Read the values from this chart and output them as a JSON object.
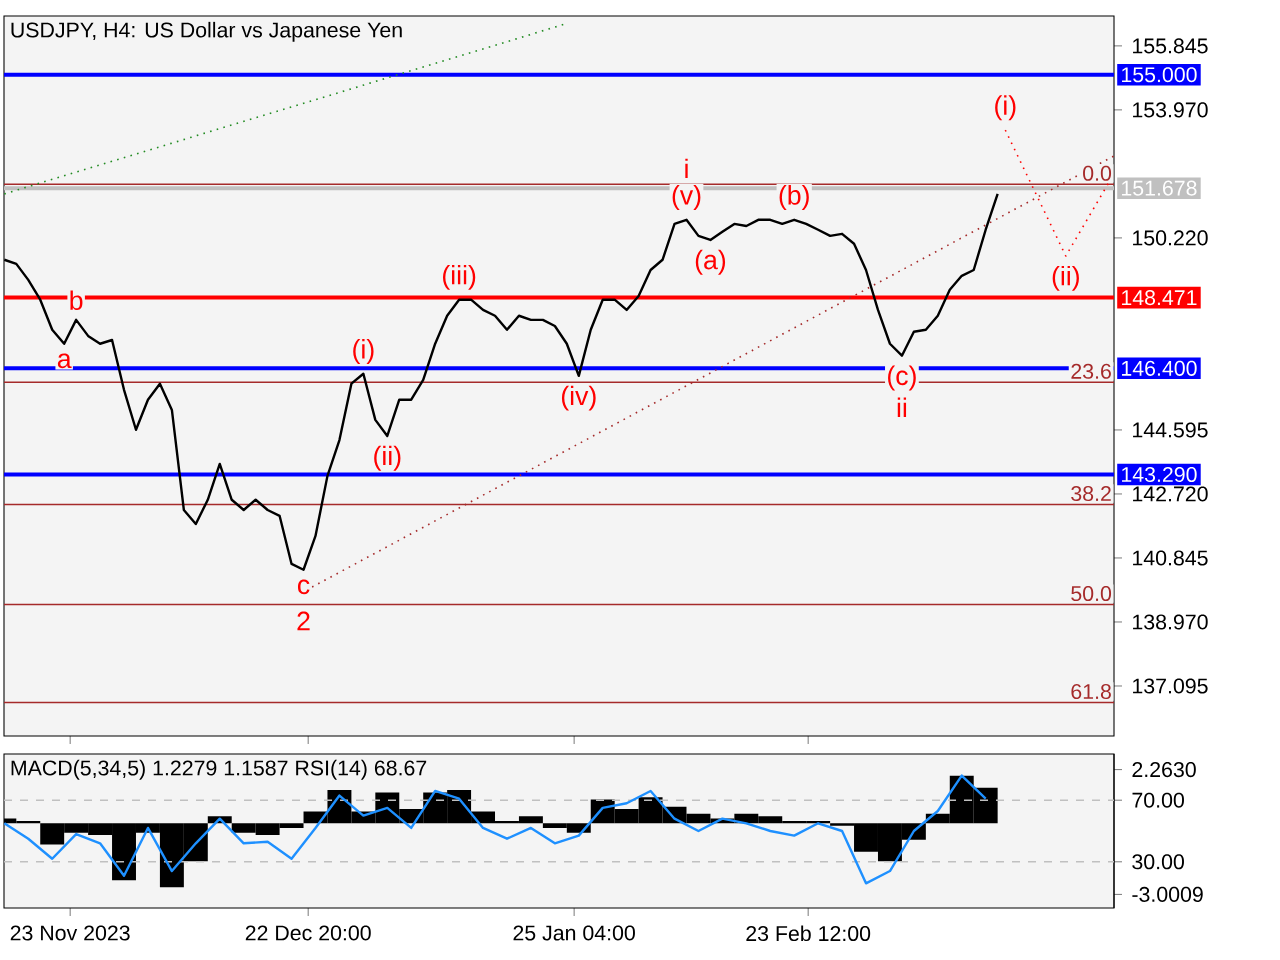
{
  "chart_data": [
    {
      "type": "line",
      "title": "USDJPY, H4:  US Dollar vs Japanese Yen",
      "series": [
        {
          "color": "#000000",
          "x": [
            "2023-11-14T18:00",
            "2023-11-16T06:00",
            "2023-11-17T18:00",
            "2023-11-19T06:00",
            "2023-11-20T18:00",
            "2023-11-22T06:00",
            "2023-11-23T18:00",
            "2023-11-25T06:00",
            "2023-11-26T18:00",
            "2023-11-28T06:00",
            "2023-11-29T18:00",
            "2023-12-01T06:00",
            "2023-12-02T18:00",
            "2023-12-04T06:00",
            "2023-12-05T18:00",
            "2023-12-07T06:00",
            "2023-12-08T18:00",
            "2023-12-10T06:00",
            "2023-12-11T18:00",
            "2023-12-13T06:00",
            "2023-12-14T18:00",
            "2023-12-16T06:00",
            "2023-12-17T18:00",
            "2023-12-19T06:00",
            "2023-12-20T18:00",
            "2023-12-22T06:00",
            "2023-12-23T18:00",
            "2023-12-25T06:00",
            "2023-12-26T18:00",
            "2023-12-28T06:00",
            "2023-12-29T18:00",
            "2023-12-31T06:00",
            "2024-01-01T18:00",
            "2024-01-03T06:00",
            "2024-01-04T18:00",
            "2024-01-06T06:00",
            "2024-01-07T18:00",
            "2024-01-09T06:00",
            "2024-01-10T18:00",
            "2024-01-12T06:00",
            "2024-01-13T18:00",
            "2024-01-15T06:00",
            "2024-01-16T18:00",
            "2024-01-18T06:00",
            "2024-01-19T18:00",
            "2024-01-21T06:00",
            "2024-01-22T18:00",
            "2024-01-24T06:00",
            "2024-01-25T18:00",
            "2024-01-27T06:00",
            "2024-01-28T18:00",
            "2024-01-30T06:00",
            "2024-01-31T18:00",
            "2024-02-02T06:00",
            "2024-02-03T18:00",
            "2024-02-05T06:00",
            "2024-02-06T18:00",
            "2024-02-08T06:00",
            "2024-02-09T18:00",
            "2024-02-11T06:00",
            "2024-02-12T18:00",
            "2024-02-14T06:00",
            "2024-02-15T18:00",
            "2024-02-17T06:00",
            "2024-02-18T18:00",
            "2024-02-20T06:00",
            "2024-02-21T18:00",
            "2024-02-23T06:00",
            "2024-02-24T18:00",
            "2024-02-26T06:00",
            "2024-02-27T18:00",
            "2024-02-29T06:00",
            "2024-03-01T18:00",
            "2024-03-03T06:00",
            "2024-03-04T18:00",
            "2024-03-06T06:00",
            "2024-03-07T18:00",
            "2024-03-09T06:00",
            "2024-03-10T18:00",
            "2024-03-12T06:00",
            "2024-03-13T18:00",
            "2024-03-15T06:00",
            "2024-03-16T18:00",
            "2024-03-18T06:00"
          ],
          "values": [
            149.58,
            149.46,
            148.99,
            148.41,
            147.53,
            147.12,
            147.82,
            147.35,
            147.12,
            147.23,
            145.77,
            144.6,
            145.48,
            145.95,
            145.18,
            142.25,
            141.84,
            142.55,
            143.6,
            142.55,
            142.25,
            142.55,
            142.25,
            142.08,
            140.67,
            140.5,
            141.49,
            143.25,
            144.3,
            145.95,
            146.24,
            144.89,
            144.42,
            145.48,
            145.48,
            146.06,
            147.12,
            147.94,
            148.41,
            148.41,
            148.11,
            147.94,
            147.53,
            147.94,
            147.82,
            147.82,
            147.64,
            147.12,
            146.18,
            147.53,
            148.41,
            148.41,
            148.11,
            148.52,
            149.28,
            149.58,
            150.63,
            150.75,
            150.28,
            150.16,
            150.4,
            150.63,
            150.57,
            150.75,
            150.75,
            150.63,
            150.75,
            150.63,
            150.46,
            150.28,
            150.34,
            150.05,
            149.28,
            148.11,
            147.12,
            146.77,
            147.47,
            147.53,
            147.94,
            148.7,
            149.11,
            149.28,
            150.46,
            151.51
          ]
        },
        {
          "color": "#228b22",
          "line_style": "dotted",
          "x": [
            "2023-11-14T18:00",
            "2024-01-24T06:00"
          ],
          "values": [
            151.51,
            156.5
          ]
        },
        {
          "color": "#a52a2a",
          "line_style": "dotted",
          "x": [
            "2023-12-21T19:00",
            "2024-04-01T20:00"
          ],
          "values": [
            139.8,
            152.62
          ]
        },
        {
          "color": "#ff0000",
          "line_style": "dotted",
          "x": [
            "2024-03-19T05:00",
            "2024-03-26T19:00",
            "2024-04-01T20:00"
          ],
          "values": [
            153.38,
            149.69,
            152.1
          ]
        }
      ],
      "xlim": [
        "2023-11-14T17:00",
        "2024-04-01T20:00"
      ],
      "xticks": [
        {
          "value": "2023-11-23T00:00",
          "label": null
        },
        {
          "value": "2023-12-22T20:00",
          "label": null
        },
        {
          "value": "2024-01-25T04:00",
          "label": null
        },
        {
          "value": "2024-02-23T12:00",
          "label": null
        }
      ],
      "ylim": [
        135.63,
        156.72
      ],
      "yticks": [
        155.845,
        {
          "value": 153.97,
          "label": "153.970"
        },
        {
          "value": 150.22,
          "label": "150.220"
        },
        144.595,
        {
          "value": 142.72,
          "label": "142.720"
        },
        140.845,
        {
          "value": 138.97,
          "label": "138.970"
        },
        137.095
      ],
      "tick_labels": "y",
      "ref_lines": [
        {
          "axis": "y",
          "value": 155.0,
          "label": "155.000",
          "color": "#0000ff"
        },
        {
          "axis": "y",
          "value": 151.678,
          "label": "151.678",
          "color": "#c0c0c0"
        },
        {
          "axis": "y",
          "value": 148.471,
          "label": "148.471",
          "color": "#ff0000"
        },
        {
          "axis": "y",
          "value": 146.4,
          "label": "146.400",
          "color": "#0000ff"
        },
        {
          "axis": "y",
          "value": 143.29,
          "label": "143.290",
          "color": "#0000ff"
        },
        {
          "axis": "y",
          "value": 151.79,
          "color": "#a52a2a"
        },
        {
          "axis": "y",
          "value": 145.99,
          "color": "#a52a2a"
        },
        {
          "axis": "y",
          "value": 142.41,
          "color": "#a52a2a"
        },
        {
          "axis": "y",
          "value": 139.48,
          "color": "#a52a2a"
        },
        {
          "axis": "y",
          "value": 136.61,
          "color": "#a52a2a"
        }
      ],
      "annotations": [
        {
          "text": "0.0",
          "x": "2024-04-01T20:00",
          "y": 151.79
        },
        {
          "text": "23.6",
          "x": "2024-04-01T20:00",
          "y": 145.99
        },
        {
          "text": "38.2",
          "x": "2024-04-01T20:00",
          "y": 142.41
        },
        {
          "text": "50.0",
          "x": "2024-04-01T20:00",
          "y": 139.48
        },
        {
          "text": "61.8",
          "x": "2024-04-01T20:00",
          "y": 136.61
        },
        {
          "text": "a",
          "x": "2023-11-22T06:00",
          "y": 147.12
        },
        {
          "text": "b",
          "x": "2023-11-23T18:00",
          "y": 147.82
        },
        {
          "text": "c",
          "x": "2023-12-22T06:00",
          "y": 140.5
        },
        {
          "text": "2",
          "x": "2023-12-22T06:00",
          "y": 140.5
        },
        {
          "text": "(i)",
          "x": "2023-12-29T18:00",
          "y": 146.24
        },
        {
          "text": "(ii)",
          "x": "2024-01-01T18:00",
          "y": 144.42
        },
        {
          "text": "(iii)",
          "x": "2024-01-10T18:00",
          "y": 148.41
        },
        {
          "text": "(iv)",
          "x": "2024-01-25T18:00",
          "y": 146.18
        },
        {
          "text": "(v)",
          "x": "2024-02-08T06:00",
          "y": 150.75
        },
        {
          "text": "i",
          "x": "2024-02-08T06:00",
          "y": 150.75
        },
        {
          "text": "(a)",
          "x": "2024-02-11T06:00",
          "y": 150.16
        },
        {
          "text": "(b)",
          "x": "2024-02-21T18:00",
          "y": 150.75
        },
        {
          "text": "(c)",
          "x": "2024-03-06T06:00",
          "y": 146.77
        },
        {
          "text": "ii",
          "x": "2024-03-06T06:00",
          "y": 146.77
        },
        {
          "text": "(i)",
          "x": "2024-03-19T05:00",
          "y": 153.38
        },
        {
          "text": "(ii)",
          "x": "2024-03-26T19:00",
          "y": 149.69
        }
      ]
    },
    {
      "type": "bar",
      "title": "MACD(5,34,5) 1.2279 1.1587 RSI(14) 68.67",
      "x": [
        "2023-11-14T18:00",
        "2023-11-17T18:00",
        "2023-11-20T18:00",
        "2023-11-23T18:00",
        "2023-11-26T18:00",
        "2023-11-29T18:00",
        "2023-12-02T18:00",
        "2023-12-05T18:00",
        "2023-12-08T18:00",
        "2023-12-11T18:00",
        "2023-12-14T18:00",
        "2023-12-17T18:00",
        "2023-12-20T18:00",
        "2023-12-23T18:00",
        "2023-12-26T18:00",
        "2023-12-29T18:00",
        "2024-01-01T18:00",
        "2024-01-04T18:00",
        "2024-01-07T18:00",
        "2024-01-10T18:00",
        "2024-01-13T18:00",
        "2024-01-16T18:00",
        "2024-01-19T18:00",
        "2024-01-22T18:00",
        "2024-01-25T18:00",
        "2024-01-28T18:00",
        "2024-01-31T18:00",
        "2024-02-03T18:00",
        "2024-02-06T18:00",
        "2024-02-09T18:00",
        "2024-02-12T18:00",
        "2024-02-15T18:00",
        "2024-02-18T18:00",
        "2024-02-21T18:00",
        "2024-02-24T18:00",
        "2024-02-27T18:00",
        "2024-03-01T18:00",
        "2024-03-04T18:00",
        "2024-03-07T18:00",
        "2024-03-10T18:00",
        "2024-03-13T18:00",
        "2024-03-16T18:00"
      ],
      "series": [
        {
          "color": "#000000",
          "values": [
            0.2,
            0.1,
            -0.9,
            -0.4,
            -0.5,
            -2.4,
            -0.4,
            -2.7,
            -1.6,
            0.3,
            -0.4,
            -0.5,
            -0.2,
            0.5,
            1.4,
            0.5,
            1.3,
            0.6,
            1.3,
            1.4,
            0.5,
            0.1,
            0.3,
            -0.2,
            -0.4,
            1.0,
            0.6,
            1.1,
            0.7,
            0.4,
            0.2,
            0.4,
            0.3,
            0.1,
            0.1,
            -0.1,
            -1.2,
            -1.6,
            -0.7,
            0.4,
            2.0,
            1.5
          ]
        },
        {
          "type": "line",
          "axis": "y2",
          "color": "#1e90ff",
          "values": [
            55,
            45,
            32,
            48,
            42,
            21,
            52,
            24,
            42,
            58,
            42,
            43,
            32,
            52,
            73,
            60,
            65,
            52,
            76,
            71,
            52,
            45,
            52,
            42,
            47,
            65,
            68,
            76,
            58,
            50,
            58,
            55,
            50,
            47,
            55,
            50,
            16,
            24,
            50,
            63,
            86,
            71
          ]
        }
      ],
      "xlim": [
        "2023-11-14T17:00",
        "2024-04-01T20:00"
      ],
      "xticks": [
        {
          "value": "2023-11-23T00:00",
          "label": "23 Nov 2023"
        },
        {
          "value": "2023-12-22T20:00",
          "label": "22 Dec 20:00"
        },
        {
          "value": "2024-01-25T04:00",
          "label": "25 Jan 04:00"
        },
        {
          "value": "2024-02-23T12:00",
          "label": "23 Feb 12:00"
        }
      ],
      "ylim": [
        -3.575,
        2.921
      ],
      "yticks": [
        {
          "value": 2.263,
          "label": "2.2630"
        },
        -3.0009
      ],
      "y2lim": [
        0,
        100
      ],
      "y2ticks": [
        {
          "value": 70,
          "label": "70.00"
        },
        {
          "value": 30,
          "label": "30.00"
        }
      ],
      "ref_lines": [
        {
          "axis": "y2",
          "value": 70,
          "color": "#c0c0c0",
          "line_style": "dashed"
        },
        {
          "axis": "y2",
          "value": 30,
          "color": "#c0c0c0",
          "line_style": "dashed"
        }
      ]
    }
  ]
}
